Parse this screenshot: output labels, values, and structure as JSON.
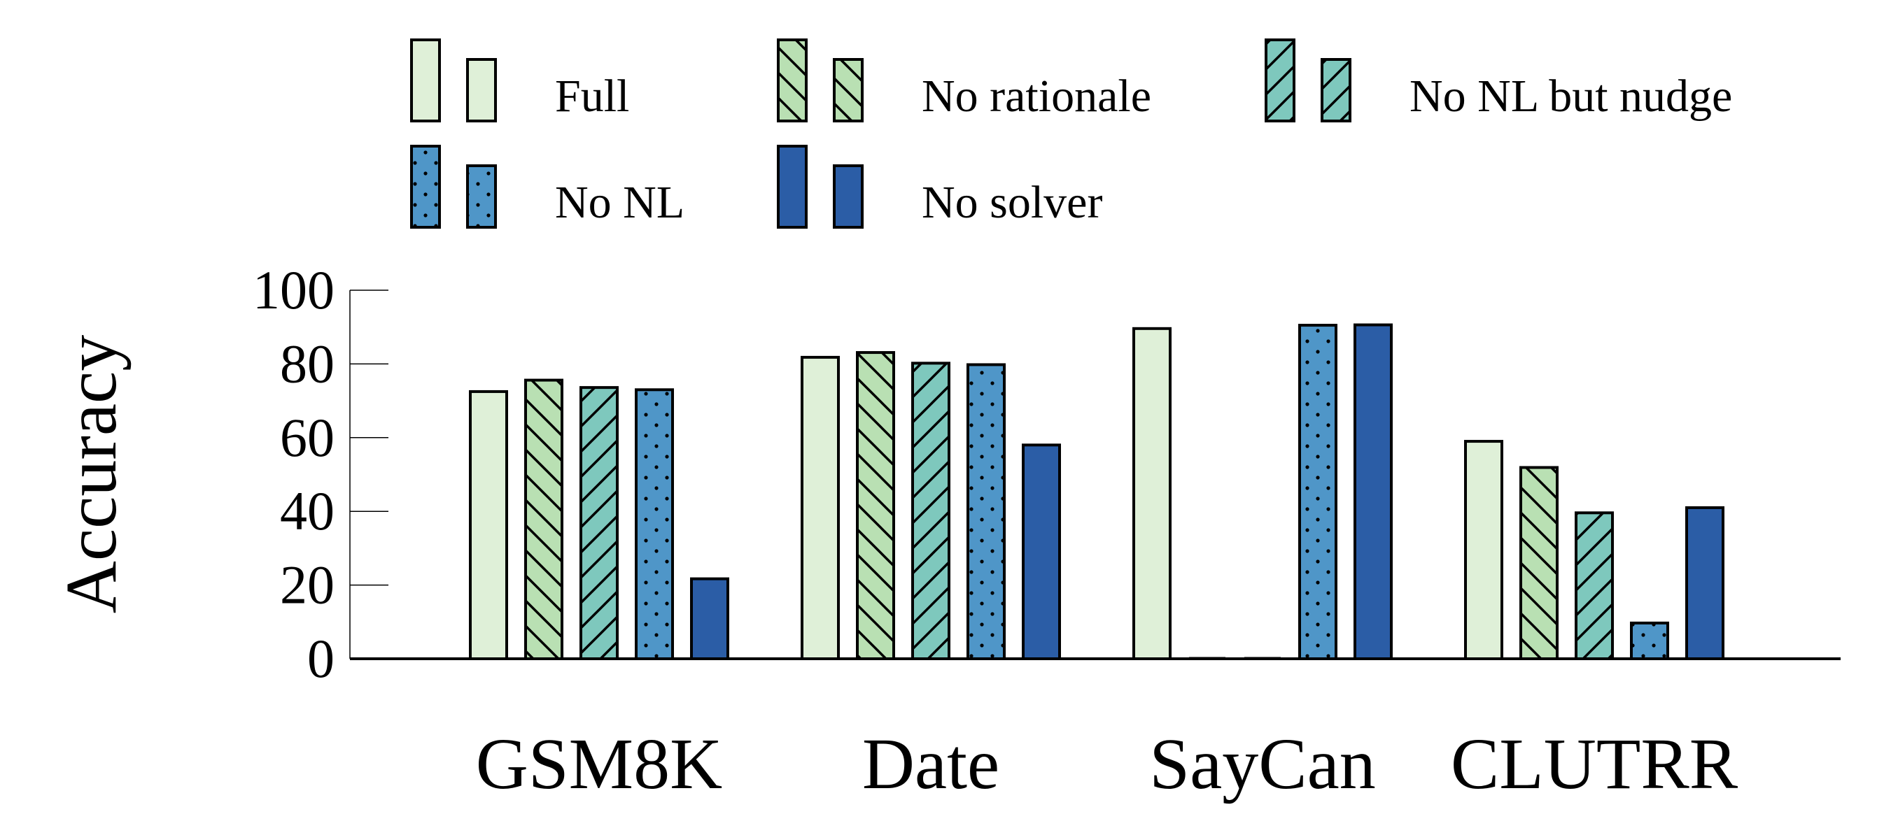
{
  "chart_data": {
    "type": "bar",
    "title": "",
    "xlabel": "",
    "ylabel": "Accuracy",
    "ylim": [
      0,
      100
    ],
    "yticks": [
      0,
      20,
      40,
      60,
      80,
      100
    ],
    "grid": false,
    "legend_position": "top",
    "categories": [
      "GSM8K",
      "Date",
      "SayCan",
      "CLUTRR"
    ],
    "series": [
      {
        "name": "Full",
        "values": [
          72.5,
          81.8,
          89.6,
          59.0
        ],
        "color": "#dff0d8",
        "pattern": "none"
      },
      {
        "name": "No rationale",
        "values": [
          75.6,
          83.1,
          0,
          51.9
        ],
        "color": "#b9e0b3",
        "pattern": "backslash"
      },
      {
        "name": "No NL but nudge",
        "values": [
          73.6,
          80.2,
          0,
          39.6
        ],
        "color": "#7ec8bd",
        "pattern": "slash"
      },
      {
        "name": "No NL",
        "values": [
          73.0,
          79.8,
          90.5,
          9.7
        ],
        "color": "#4f96c8",
        "pattern": "dots"
      },
      {
        "name": "No solver",
        "values": [
          21.7,
          58.0,
          90.6,
          41.0
        ],
        "color": "#2b5da6",
        "pattern": "none"
      }
    ]
  }
}
